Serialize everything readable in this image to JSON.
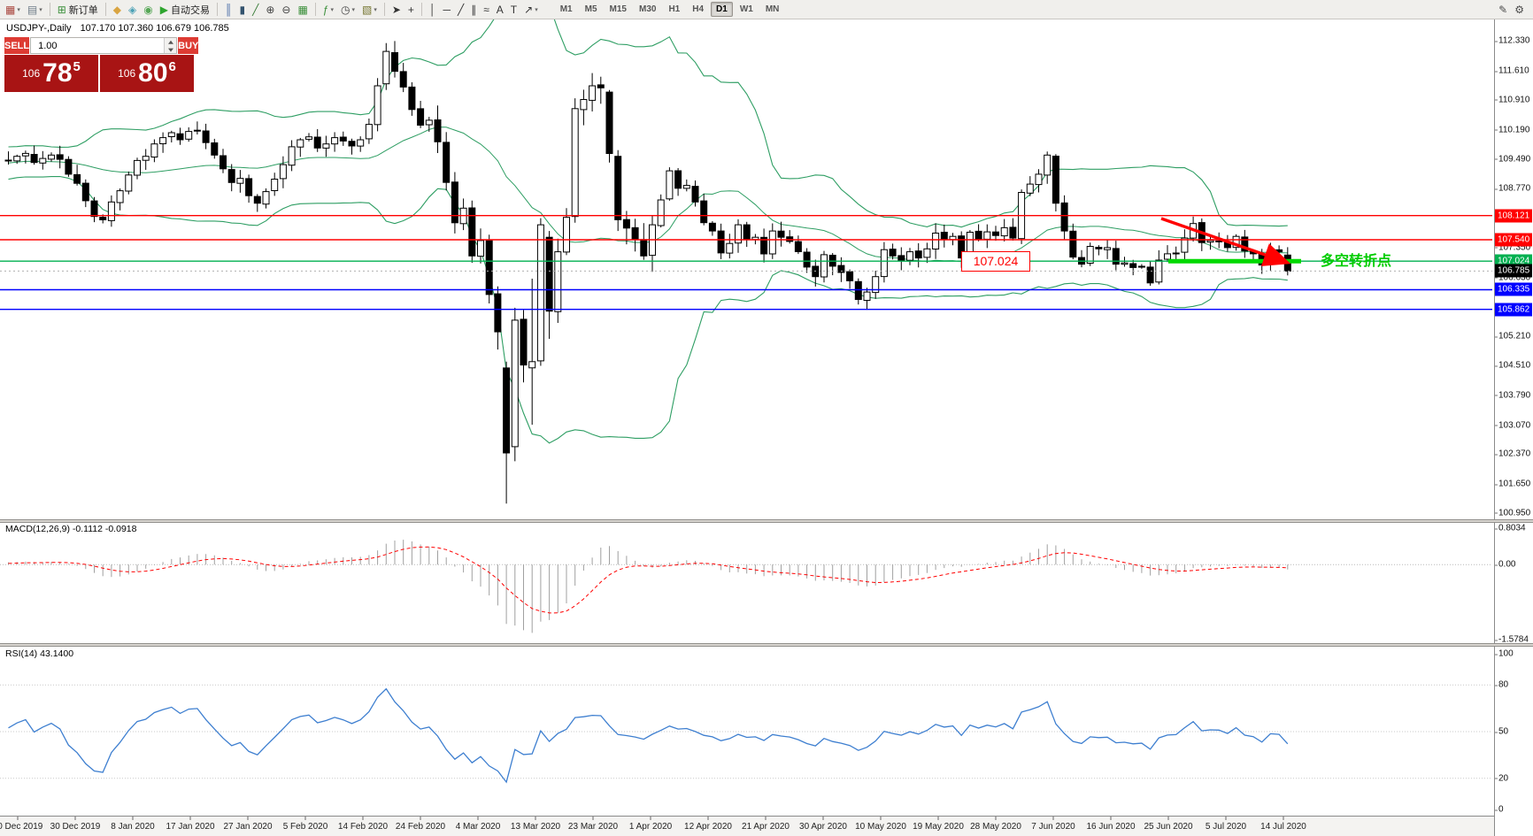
{
  "header": {
    "symbol": "USDJPY-,Daily",
    "ohlc": "107.170 107.360 106.679 106.785"
  },
  "toolbar": {
    "items": [
      {
        "name": "new-chart-button",
        "glyph": "▦",
        "glyph_color": "#a8443c",
        "dropdown": true
      },
      {
        "name": "profiles-button",
        "glyph": "▤",
        "glyph_color": "#6d7b88",
        "dropdown": true
      },
      {
        "sep": true
      },
      {
        "name": "new-order-button",
        "glyph": "⊞",
        "glyph_color": "#3a8f3a",
        "label": "新订单"
      },
      {
        "sep": true
      },
      {
        "name": "market-watch-button",
        "glyph": "◆",
        "glyph_color": "#d9a441"
      },
      {
        "name": "navigator-button",
        "glyph": "◈",
        "glyph_color": "#4aa0b5"
      },
      {
        "name": "terminal-button",
        "glyph": "◉",
        "glyph_color": "#57a757"
      },
      {
        "name": "auto-trading-button",
        "glyph": "▶",
        "glyph_color": "#2fa52f",
        "label": "自动交易"
      },
      {
        "sep": true
      },
      {
        "name": "bars-chart-button",
        "glyph": "║",
        "glyph_color": "#4a6ea8"
      },
      {
        "name": "candles-chart-button",
        "glyph": "▮",
        "glyph_color": "#33536e"
      },
      {
        "name": "line-chart-button",
        "glyph": "╱",
        "glyph_color": "#3a7d3a"
      },
      {
        "name": "zoom-in-button",
        "glyph": "⊕",
        "glyph_color": "#444444"
      },
      {
        "name": "zoom-out-button",
        "glyph": "⊖",
        "glyph_color": "#444444"
      },
      {
        "name": "tile-windows-button",
        "glyph": "▦",
        "glyph_color": "#3a8f3a"
      },
      {
        "sep": true
      },
      {
        "name": "indicators-button",
        "glyph": "ƒ",
        "glyph_color": "#3a8f3a",
        "dropdown": true
      },
      {
        "name": "periods-button",
        "glyph": "◷",
        "glyph_color": "#444444",
        "dropdown": true
      },
      {
        "name": "templates-button",
        "glyph": "▧",
        "glyph_color": "#777733",
        "dropdown": true
      },
      {
        "sep": true
      },
      {
        "name": "cursor-button",
        "glyph": "➤",
        "glyph_color": "#333333"
      },
      {
        "name": "crosshair-button",
        "glyph": "+",
        "glyph_color": "#333333"
      },
      {
        "sep": true
      },
      {
        "name": "vertical-line-button",
        "glyph": "│",
        "glyph_color": "#333333"
      },
      {
        "name": "horizontal-line-button",
        "glyph": "─",
        "glyph_color": "#333333"
      },
      {
        "name": "trendline-button",
        "glyph": "╱",
        "glyph_color": "#333333"
      },
      {
        "name": "channel-button",
        "glyph": "∥",
        "glyph_color": "#333333"
      },
      {
        "name": "fibonacci-button",
        "glyph": "≈",
        "glyph_color": "#333333"
      },
      {
        "name": "text-button",
        "glyph": "A",
        "glyph_color": "#333333"
      },
      {
        "name": "text-label-button",
        "glyph": "T",
        "glyph_color": "#333333"
      },
      {
        "name": "arrows-button",
        "glyph": "↗",
        "glyph_color": "#333333",
        "dropdown": true
      }
    ],
    "timeframes": [
      "M1",
      "M5",
      "M15",
      "M30",
      "H1",
      "H4",
      "D1",
      "W1",
      "MN"
    ],
    "active_timeframe": "D1",
    "right_items": [
      {
        "name": "pencil-icon",
        "glyph": "✎"
      },
      {
        "name": "settings-icon",
        "glyph": "⚙"
      }
    ]
  },
  "one_click": {
    "sell_label": "SELL",
    "buy_label": "BUY",
    "volume": "1.00",
    "sell_price": {
      "prefix": "106",
      "big": "78",
      "sup": "5"
    },
    "buy_price": {
      "prefix": "106",
      "big": "80",
      "sup": "6"
    }
  },
  "annotations": {
    "price_flag": "107.024",
    "turning_point": "多空转折点"
  },
  "chart_data": {
    "type": "candlestick",
    "symbol": "USDJPY-,Daily",
    "ohlc_display": "107.170 107.360 106.679 106.785",
    "colors": {
      "bull": "#ffffff",
      "bear": "#000000",
      "outline": "#000000",
      "background": "#ffffff"
    },
    "y_axis": {
      "ticks": [
        "112.330",
        "111.610",
        "110.910",
        "110.190",
        "109.490",
        "108.770",
        "108.050",
        "107.350",
        "106.630",
        "105.910",
        "105.210",
        "104.510",
        "103.790",
        "103.070",
        "102.370",
        "101.650",
        "100.950"
      ]
    },
    "x_labels": [
      "20 Dec 2019",
      "30 Dec 2019",
      "8 Jan 2020",
      "17 Jan 2020",
      "27 Jan 2020",
      "5 Feb 2020",
      "14 Feb 2020",
      "24 Feb 2020",
      "4 Mar 2020",
      "13 Mar 2020",
      "23 Mar 2020",
      "1 Apr 2020",
      "12 Apr 2020",
      "21 Apr 2020",
      "30 Apr 2020",
      "10 May 2020",
      "19 May 2020",
      "28 May 2020",
      "7 Jun 2020",
      "16 Jun 2020",
      "25 Jun 2020",
      "5 Jul 2020",
      "14 Jul 2020"
    ],
    "hlines": [
      {
        "label": "108.121",
        "price": 108.121,
        "color": "#ff0000"
      },
      {
        "label": "107.540",
        "price": 107.54,
        "color": "#ff0000"
      },
      {
        "label": "107.024",
        "price": 107.024,
        "color": "#00b050"
      },
      {
        "label": "106.785",
        "price": 106.785,
        "color": "#000000",
        "style": "current"
      },
      {
        "label": "106.335",
        "price": 106.335,
        "color": "#0000ff"
      },
      {
        "label": "105.862",
        "price": 105.862,
        "color": "#0000ff"
      }
    ],
    "bollinger": {
      "period": 20,
      "deviation": 2,
      "color": "#2e9e63"
    },
    "candles": {
      "closes": [
        109.45,
        109.55,
        109.62,
        109.4,
        109.5,
        109.58,
        109.48,
        109.12,
        108.9,
        108.48,
        108.1,
        108.02,
        108.45,
        108.72,
        109.1,
        109.45,
        109.55,
        109.85,
        110.0,
        110.12,
        109.95,
        110.15,
        110.18,
        109.88,
        109.58,
        109.25,
        108.92,
        109.02,
        108.6,
        108.42,
        108.7,
        109.0,
        109.35,
        109.78,
        109.95,
        110.02,
        109.75,
        109.85,
        110.0,
        109.92,
        109.8,
        109.95,
        110.32,
        111.25,
        112.08,
        111.6,
        111.22,
        110.68,
        110.3,
        110.42,
        109.9,
        108.92,
        107.95,
        108.3,
        107.15,
        107.52,
        106.22,
        105.32,
        102.4,
        105.6,
        104.52,
        104.6,
        107.9,
        105.82,
        107.25,
        108.08,
        110.7,
        110.92,
        111.25,
        111.2,
        109.62,
        108.02,
        107.82,
        107.55,
        107.15,
        107.9,
        108.5,
        109.2,
        108.78,
        108.85,
        108.45,
        107.95,
        107.75,
        107.22,
        107.45,
        107.9,
        107.55,
        107.6,
        107.2,
        107.75,
        107.6,
        107.5,
        107.25,
        106.88,
        106.65,
        107.18,
        106.9,
        106.75,
        106.55,
        106.1,
        106.28,
        106.65,
        107.3,
        107.15,
        107.03,
        107.25,
        107.1,
        107.32,
        107.7,
        107.55,
        107.62,
        107.1,
        107.72,
        107.55,
        107.73,
        107.64,
        107.83,
        107.58,
        108.68,
        108.88,
        109.12,
        109.58,
        108.42,
        107.75,
        107.12,
        106.95,
        107.38,
        107.32,
        107.35,
        106.95,
        106.98,
        106.87,
        106.9,
        106.5,
        107.05,
        107.2,
        107.22,
        107.58,
        107.93,
        107.47,
        107.52,
        107.51,
        107.35,
        107.62,
        107.27,
        107.2,
        106.93,
        107.28,
        107.25,
        106.785
      ],
      "overrides": {
        "44": [
          111.3,
          112.28,
          111.15,
          112.08
        ],
        "45": [
          112.05,
          112.33,
          111.45,
          111.6
        ],
        "58": [
          104.45,
          104.6,
          101.18,
          102.4
        ],
        "59": [
          102.55,
          105.9,
          102.2,
          105.6
        ],
        "61": [
          104.45,
          106.6,
          103.08,
          104.6
        ],
        "62": [
          104.62,
          108.06,
          104.5,
          107.9
        ],
        "63": [
          107.6,
          107.75,
          105.15,
          105.82
        ],
        "66": [
          108.1,
          110.95,
          107.95,
          110.7
        ],
        "70": [
          111.1,
          111.15,
          109.4,
          109.62
        ],
        "71": [
          109.55,
          109.7,
          107.75,
          108.02
        ],
        "149": [
          107.17,
          107.36,
          106.679,
          106.785
        ]
      }
    },
    "macd": {
      "label": "MACD(12,26,9)",
      "values": "-0.1112 -0.0918",
      "scale": [
        "0.8034",
        "0.00",
        "-1.5784"
      ],
      "histogram_color": "#a0a0a0",
      "signal_color": "#ff0000"
    },
    "rsi": {
      "label": "RSI(14)",
      "value": "43.1400",
      "scale": [
        "100",
        "80",
        "50",
        "20",
        "0"
      ],
      "levels": [
        80,
        50,
        20
      ],
      "color": "#3e7fd0"
    },
    "annotations_style": {
      "arrow_color": "#ff0000",
      "segment_color": "#00d900"
    }
  }
}
